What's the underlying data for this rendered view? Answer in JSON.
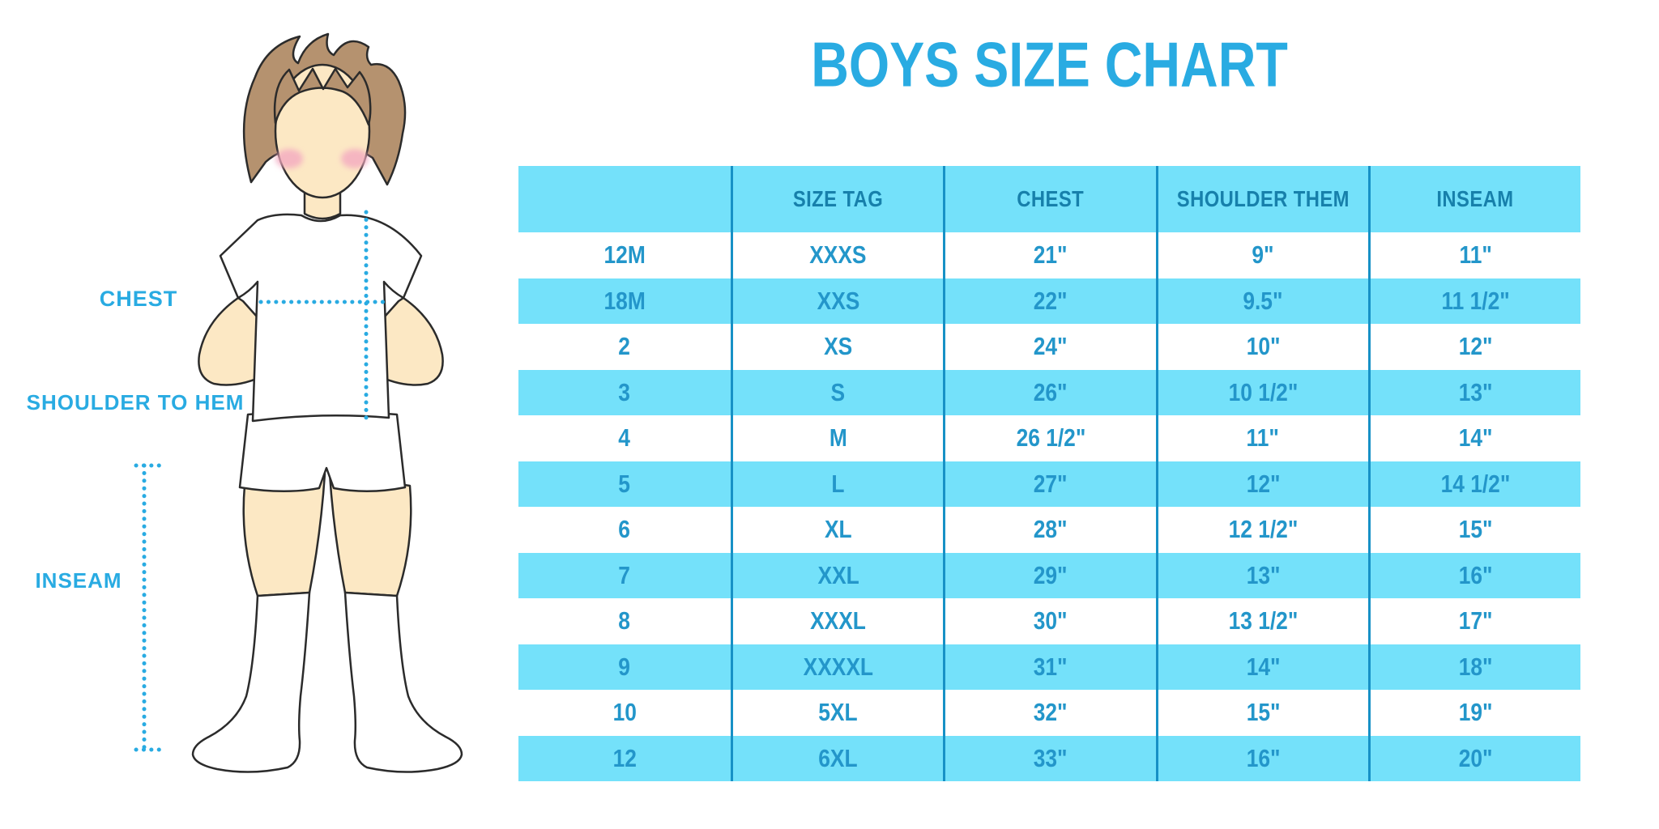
{
  "title": "BOYS SIZE CHART",
  "colors": {
    "blue": "#29ABE2",
    "table_bg": "#74E1FA",
    "divider": "#1791C6",
    "header_text": "#1780AB",
    "cell_text": "#2396CA",
    "skin": "#FCE8C4",
    "hair": "#B5926F",
    "cheek": "#F4A9C1",
    "outline": "#2B2B2B"
  },
  "figure": {
    "labels": {
      "chest": "CHEST",
      "shoulder_to_hem": "SHOULDER TO HEM",
      "inseam": "INSEAM"
    }
  },
  "chart_data": {
    "type": "table",
    "title": "BOYS SIZE CHART",
    "columns": [
      "",
      "SIZE TAG",
      "CHEST",
      "SHOULDER THEM",
      "INSEAM"
    ],
    "rows": [
      [
        "12M",
        "XXXS",
        "21\"",
        "9\"",
        "11\""
      ],
      [
        "18M",
        "XXS",
        "22\"",
        "9.5\"",
        "11 1/2\""
      ],
      [
        "2",
        "XS",
        "24\"",
        "10\"",
        "12\""
      ],
      [
        "3",
        "S",
        "26\"",
        "10 1/2\"",
        "13\""
      ],
      [
        "4",
        "M",
        "26 1/2\"",
        "11\"",
        "14\""
      ],
      [
        "5",
        "L",
        "27\"",
        "12\"",
        "14 1/2\""
      ],
      [
        "6",
        "XL",
        "28\"",
        "12 1/2\"",
        "15\""
      ],
      [
        "7",
        "XXL",
        "29\"",
        "13\"",
        "16\""
      ],
      [
        "8",
        "XXXL",
        "30\"",
        "13 1/2\"",
        "17\""
      ],
      [
        "9",
        "XXXXL",
        "31\"",
        "14\"",
        "18\""
      ],
      [
        "10",
        "5XL",
        "32\"",
        "15\"",
        "19\""
      ],
      [
        "12",
        "6XL",
        "33\"",
        "16\"",
        "20\""
      ]
    ],
    "striping": "alternating rows highlighted, starting with second data row",
    "legend_position": "none",
    "grid": "vertical dividers only"
  }
}
